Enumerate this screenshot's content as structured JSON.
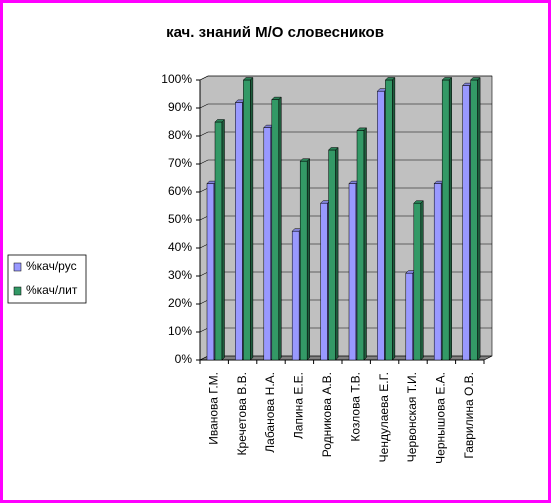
{
  "chart_data": {
    "type": "bar",
    "title": "кач. знаний М/О словесников",
    "categories": [
      "Иванова Г.М.",
      "Кречетова В.В.",
      "Лабанова Н.А.",
      "Лапина Е.Е.",
      "Родникова А.В.",
      "Козлова Т.В.",
      "Чендулаева Е.Г.",
      "Червонская Т.И.",
      "Чернышова Е.А.",
      "Гаврилина О.В."
    ],
    "series": [
      {
        "name": "%кач/рус",
        "color": "#9999ff",
        "values": [
          63,
          92,
          83,
          46,
          56,
          63,
          96,
          31,
          63,
          98
        ]
      },
      {
        "name": "%кач/лит",
        "color": "#339966",
        "values": [
          85,
          100,
          93,
          71,
          75,
          82,
          100,
          56,
          100,
          100
        ]
      }
    ],
    "ylim": [
      0,
      100
    ],
    "yticks": [
      {
        "value": 0,
        "label": "0%"
      },
      {
        "value": 10,
        "label": "10%"
      },
      {
        "value": 20,
        "label": "20%"
      },
      {
        "value": 30,
        "label": "30%"
      },
      {
        "value": 40,
        "label": "40%"
      },
      {
        "value": 50,
        "label": "50%"
      },
      {
        "value": 60,
        "label": "60%"
      },
      {
        "value": 70,
        "label": "70%"
      },
      {
        "value": 80,
        "label": "80%"
      },
      {
        "value": 90,
        "label": "90%"
      },
      {
        "value": 100,
        "label": "100%"
      }
    ],
    "grid": true,
    "legend": "left"
  }
}
